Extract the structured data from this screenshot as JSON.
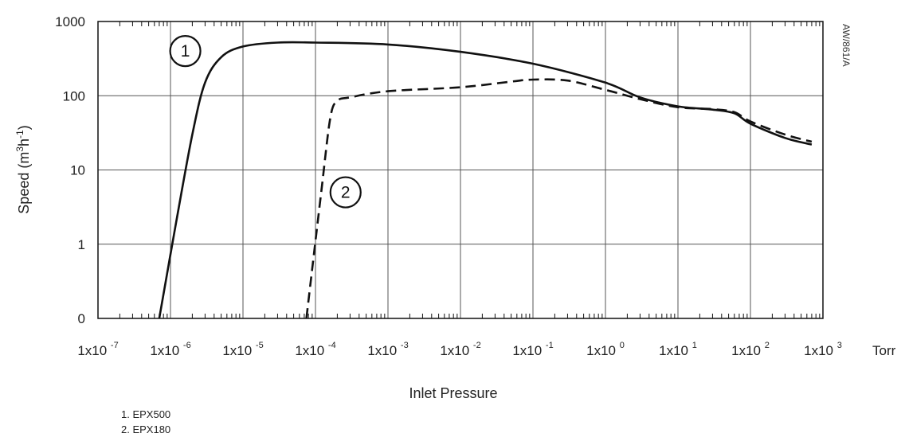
{
  "chart_data": {
    "type": "line",
    "xlabel": "Inlet Pressure",
    "x_unit": "Torr",
    "ylabel": "Speed (m3h-1)",
    "ylabel_parts": {
      "base": "Speed (m",
      "sup1": "3",
      "mid": "h",
      "sup2": "-1",
      "end": ")"
    },
    "x_scale": "log",
    "y_scale": "log",
    "xlim": [
      1e-07,
      1000
    ],
    "ylim": [
      0.1,
      1000
    ],
    "grid": true,
    "reference_code": "AW/861/A",
    "x_ticks": [
      {
        "value": 1e-07,
        "base": "1x10",
        "exp": "-7"
      },
      {
        "value": 1e-06,
        "base": "1x10",
        "exp": "-6"
      },
      {
        "value": 1e-05,
        "base": "1x10",
        "exp": "-5"
      },
      {
        "value": 0.0001,
        "base": "1x10",
        "exp": "-4"
      },
      {
        "value": 0.001,
        "base": "1x10",
        "exp": "-3"
      },
      {
        "value": 0.01,
        "base": "1x10",
        "exp": "-2"
      },
      {
        "value": 0.1,
        "base": "1x10",
        "exp": "-1"
      },
      {
        "value": 1.0,
        "base": "1x10",
        "exp": "0"
      },
      {
        "value": 10.0,
        "base": "1x10",
        "exp": "1"
      },
      {
        "value": 100.0,
        "base": "1x10",
        "exp": "2"
      },
      {
        "value": 1000.0,
        "base": "1x10",
        "exp": "3"
      }
    ],
    "y_ticks": [
      {
        "value": 0.1,
        "label": "0"
      },
      {
        "value": 1,
        "label": "1"
      },
      {
        "value": 10,
        "label": "10"
      },
      {
        "value": 100,
        "label": "100"
      },
      {
        "value": 1000,
        "label": "1000"
      }
    ],
    "series": [
      {
        "marker": "1",
        "style": "solid",
        "color": "#111111",
        "points": [
          [
            7e-07,
            0.1
          ],
          [
            1.2e-06,
            2
          ],
          [
            2e-06,
            30
          ],
          [
            3e-06,
            150
          ],
          [
            5e-06,
            330
          ],
          [
            1e-05,
            460
          ],
          [
            3e-05,
            520
          ],
          [
            0.0001,
            520
          ],
          [
            0.001,
            490
          ],
          [
            0.01,
            390
          ],
          [
            0.1,
            270
          ],
          [
            1,
            150
          ],
          [
            3,
            95
          ],
          [
            10,
            72
          ],
          [
            30,
            65
          ],
          [
            60,
            58
          ],
          [
            100,
            42
          ],
          [
            300,
            27
          ],
          [
            700,
            22
          ]
        ]
      },
      {
        "marker": "2",
        "style": "dashed",
        "color": "#111111",
        "points": [
          [
            7.5e-05,
            0.1
          ],
          [
            0.00012,
            5
          ],
          [
            0.00016,
            50
          ],
          [
            0.0002,
            85
          ],
          [
            0.0003,
            95
          ],
          [
            0.001,
            115
          ],
          [
            0.01,
            130
          ],
          [
            0.05,
            155
          ],
          [
            0.1,
            165
          ],
          [
            0.3,
            160
          ],
          [
            1,
            120
          ],
          [
            3,
            90
          ],
          [
            10,
            70
          ],
          [
            30,
            66
          ],
          [
            60,
            60
          ],
          [
            100,
            45
          ],
          [
            300,
            30
          ],
          [
            700,
            24
          ]
        ]
      }
    ],
    "annotations": [
      {
        "text": "1",
        "x": 1.6e-06,
        "y": 400
      },
      {
        "text": "2",
        "x": 0.00026,
        "y": 5
      }
    ]
  },
  "legend_items": [
    "1. EPX500",
    "2. EPX180"
  ]
}
